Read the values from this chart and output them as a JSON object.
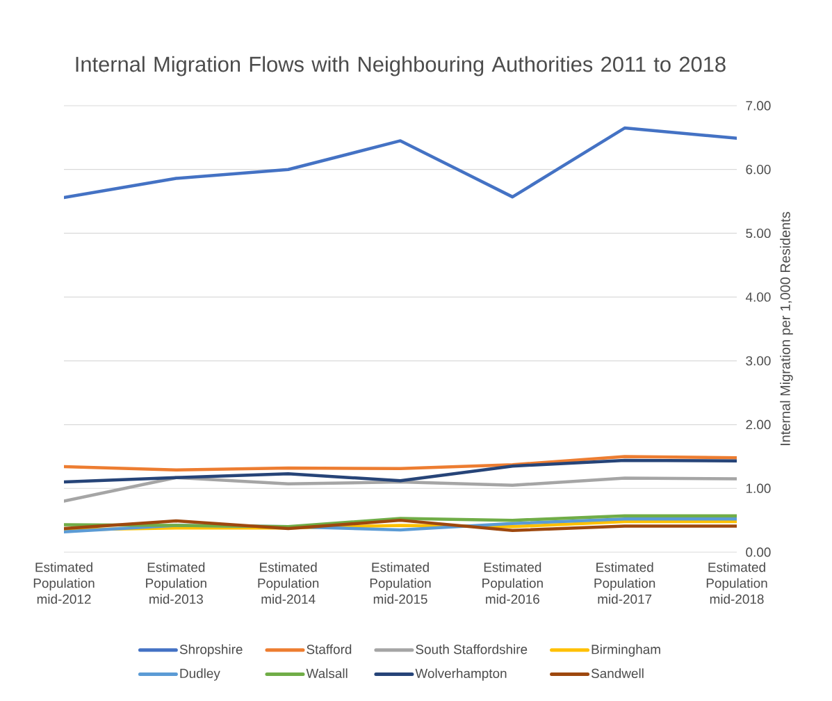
{
  "chart_data": {
    "type": "line",
    "title": "Internal Migration Flows with Neighbouring Authorities 2011 to 2018",
    "ylabel": "Internal Migration per 1,000 Residents",
    "categories": [
      "Estimated Population mid-2012",
      "Estimated Population mid-2013",
      "Estimated Population mid-2014",
      "Estimated Population mid-2015",
      "Estimated Population mid-2016",
      "Estimated Population mid-2017",
      "Estimated Population mid-2018"
    ],
    "series": [
      {
        "name": "Shropshire",
        "color": "#4472c4",
        "values": [
          5.56,
          5.86,
          6.0,
          6.45,
          5.57,
          6.65,
          6.49
        ]
      },
      {
        "name": "Stafford",
        "color": "#ed7d31",
        "values": [
          1.34,
          1.29,
          1.32,
          1.31,
          1.37,
          1.5,
          1.48
        ]
      },
      {
        "name": "South Staffordshire",
        "color": "#a5a5a5",
        "values": [
          0.8,
          1.17,
          1.07,
          1.1,
          1.05,
          1.16,
          1.15
        ]
      },
      {
        "name": "Birmingham",
        "color": "#ffc000",
        "values": [
          0.35,
          0.38,
          0.38,
          0.42,
          0.4,
          0.48,
          0.48
        ]
      },
      {
        "name": "Dudley",
        "color": "#5b9bd5",
        "values": [
          0.32,
          0.42,
          0.4,
          0.35,
          0.45,
          0.52,
          0.52
        ]
      },
      {
        "name": "Walsall",
        "color": "#70ad47",
        "values": [
          0.43,
          0.42,
          0.4,
          0.53,
          0.5,
          0.57,
          0.57
        ]
      },
      {
        "name": "Wolverhampton",
        "color": "#264478",
        "values": [
          1.1,
          1.17,
          1.23,
          1.12,
          1.35,
          1.44,
          1.43
        ]
      },
      {
        "name": "Sandwell",
        "color": "#9e480e",
        "values": [
          0.37,
          0.49,
          0.37,
          0.5,
          0.34,
          0.41,
          0.41
        ]
      }
    ],
    "ylim": [
      0,
      7
    ],
    "yticks": [
      {
        "value": 0,
        "label": "0.00"
      },
      {
        "value": 1,
        "label": "1.00"
      },
      {
        "value": 2,
        "label": "2.00"
      },
      {
        "value": 3,
        "label": "3.00"
      },
      {
        "value": 4,
        "label": "4.00"
      },
      {
        "value": 5,
        "label": "5.00"
      },
      {
        "value": 6,
        "label": "6.00"
      },
      {
        "value": 7,
        "label": "7.00"
      }
    ],
    "grid": "y",
    "legend": "bottom",
    "marker": "none",
    "line_style": "solid"
  }
}
